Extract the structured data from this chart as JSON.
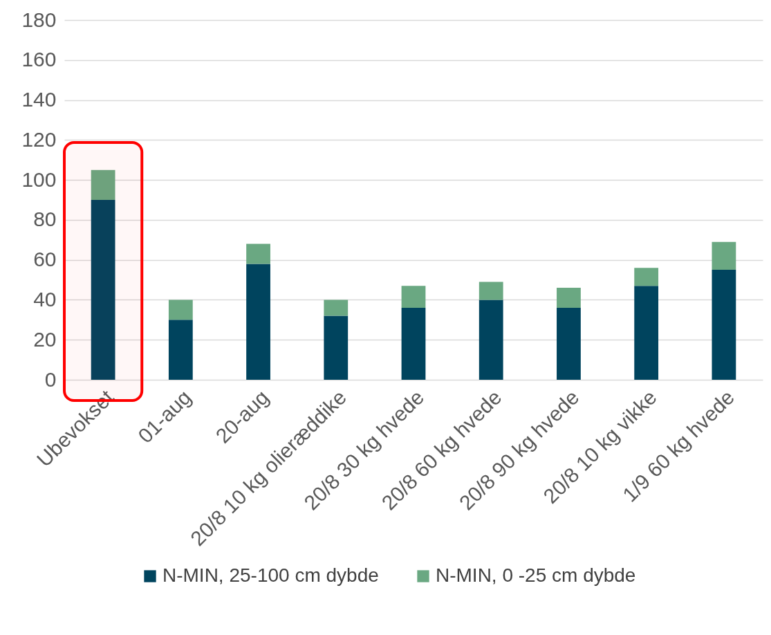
{
  "chart_data": {
    "type": "bar",
    "stacked": true,
    "categories": [
      "Ubevokset",
      "01-aug",
      "20-aug",
      "20/8 10 kg olieræddike",
      "20/8 30 kg hvede",
      "20/8 60 kg hvede",
      "20/8 90 kg hvede",
      "20/8 10 kg vikke",
      "1/9 60 kg hvede"
    ],
    "series": [
      {
        "name": "N-MIN, 25-100 cm dybde",
        "color": "#00445e",
        "values": [
          90,
          30,
          58,
          32,
          36,
          40,
          36,
          47,
          55
        ]
      },
      {
        "name": "N-MIN, 0 -25  cm dybde",
        "color": "#6aa882",
        "values": [
          15,
          10,
          10,
          8,
          11,
          9,
          10,
          9,
          14
        ]
      }
    ],
    "ylim": [
      0,
      180
    ],
    "yticks": [
      0,
      20,
      40,
      60,
      80,
      100,
      120,
      140,
      160,
      180
    ],
    "grid": "y",
    "legend": "bottom",
    "bands": [
      {
        "axis": "x",
        "from": "Ubevokset",
        "to": "Ubevokset",
        "color": "#ff0000"
      }
    ]
  }
}
